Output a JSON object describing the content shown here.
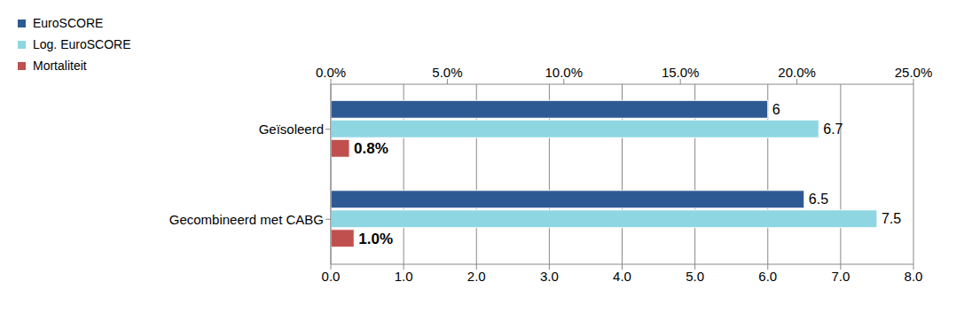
{
  "chart_data": {
    "type": "bar",
    "orientation": "horizontal",
    "categories": [
      "Geïsoleerd",
      "Gecombineerd met CABG"
    ],
    "series": [
      {
        "name": "EuroSCORE",
        "color": "#2e5a94",
        "values": [
          6,
          6.5
        ]
      },
      {
        "name": "Log. EuroSCORE",
        "color": "#8fd6e3",
        "values": [
          6.7,
          7.5
        ]
      },
      {
        "name": "Mortaliteit",
        "color": "#c0504d",
        "values": [
          0.8,
          1.0
        ],
        "value_labels": [
          "0.8%",
          "1.0%"
        ],
        "axis": "x2"
      }
    ],
    "xlim": [
      0,
      8
    ],
    "xticks": [
      {
        "value": 0,
        "label": "0.0"
      },
      {
        "value": 1,
        "label": "1.0"
      },
      {
        "value": 2,
        "label": "2.0"
      },
      {
        "value": 3,
        "label": "3.0"
      },
      {
        "value": 4,
        "label": "4.0"
      },
      {
        "value": 5,
        "label": "5.0"
      },
      {
        "value": 6,
        "label": "6.0"
      },
      {
        "value": 7,
        "label": "7.0"
      },
      {
        "value": 8,
        "label": "8.0"
      }
    ],
    "x2lim": [
      0,
      25
    ],
    "x2ticks": [
      {
        "value": 0,
        "label": "0.0%"
      },
      {
        "value": 5,
        "label": "5.0%"
      },
      {
        "value": 10,
        "label": "10.0%"
      },
      {
        "value": 15,
        "label": "15.0%"
      },
      {
        "value": 20,
        "label": "20.0%"
      },
      {
        "value": 25,
        "label": "25.0%"
      }
    ],
    "grid": true,
    "legend": "top-left",
    "data_labels": true
  }
}
